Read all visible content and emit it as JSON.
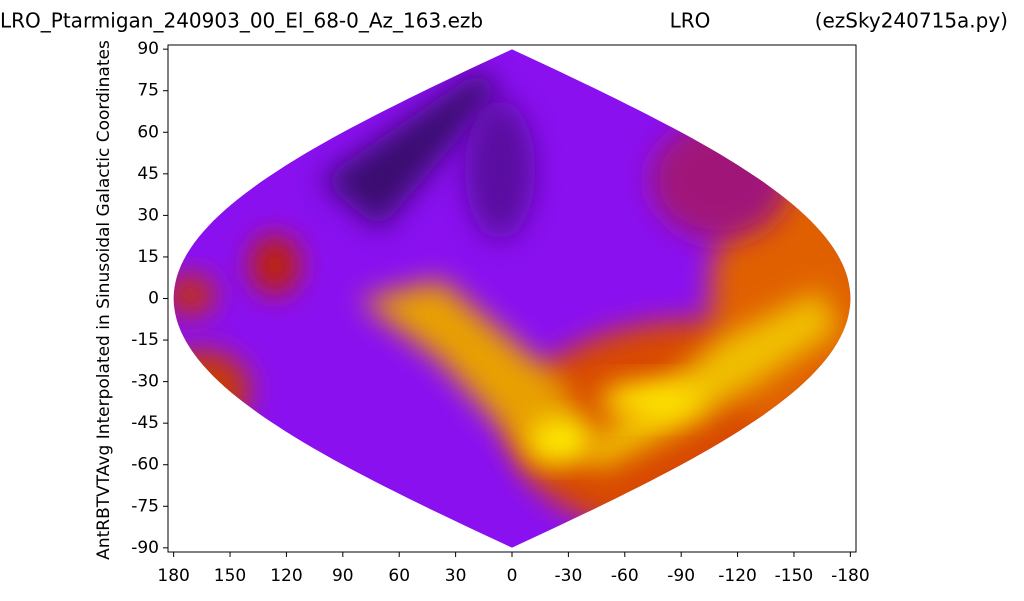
{
  "chart_data": {
    "type": "sinusoidal-map",
    "title": "LRO_Ptarmigan_240903_00_El_68-0_Az_163.ezb",
    "title_center": "LRO",
    "title_right": "(ezSky240715a.py)",
    "y_label": "AntRBTVTAvg Interpolated in Sinusoidal Galactic Coordinates",
    "xlim": [
      183,
      -183
    ],
    "ylim": [
      -91.5,
      91.5
    ],
    "xticks": [
      180,
      150,
      120,
      90,
      60,
      30,
      0,
      -30,
      -60,
      -90,
      -120,
      -150,
      -180
    ],
    "yticks": [
      90,
      75,
      60,
      45,
      30,
      15,
      0,
      -15,
      -30,
      -45,
      -60,
      -75,
      -90
    ]
  }
}
